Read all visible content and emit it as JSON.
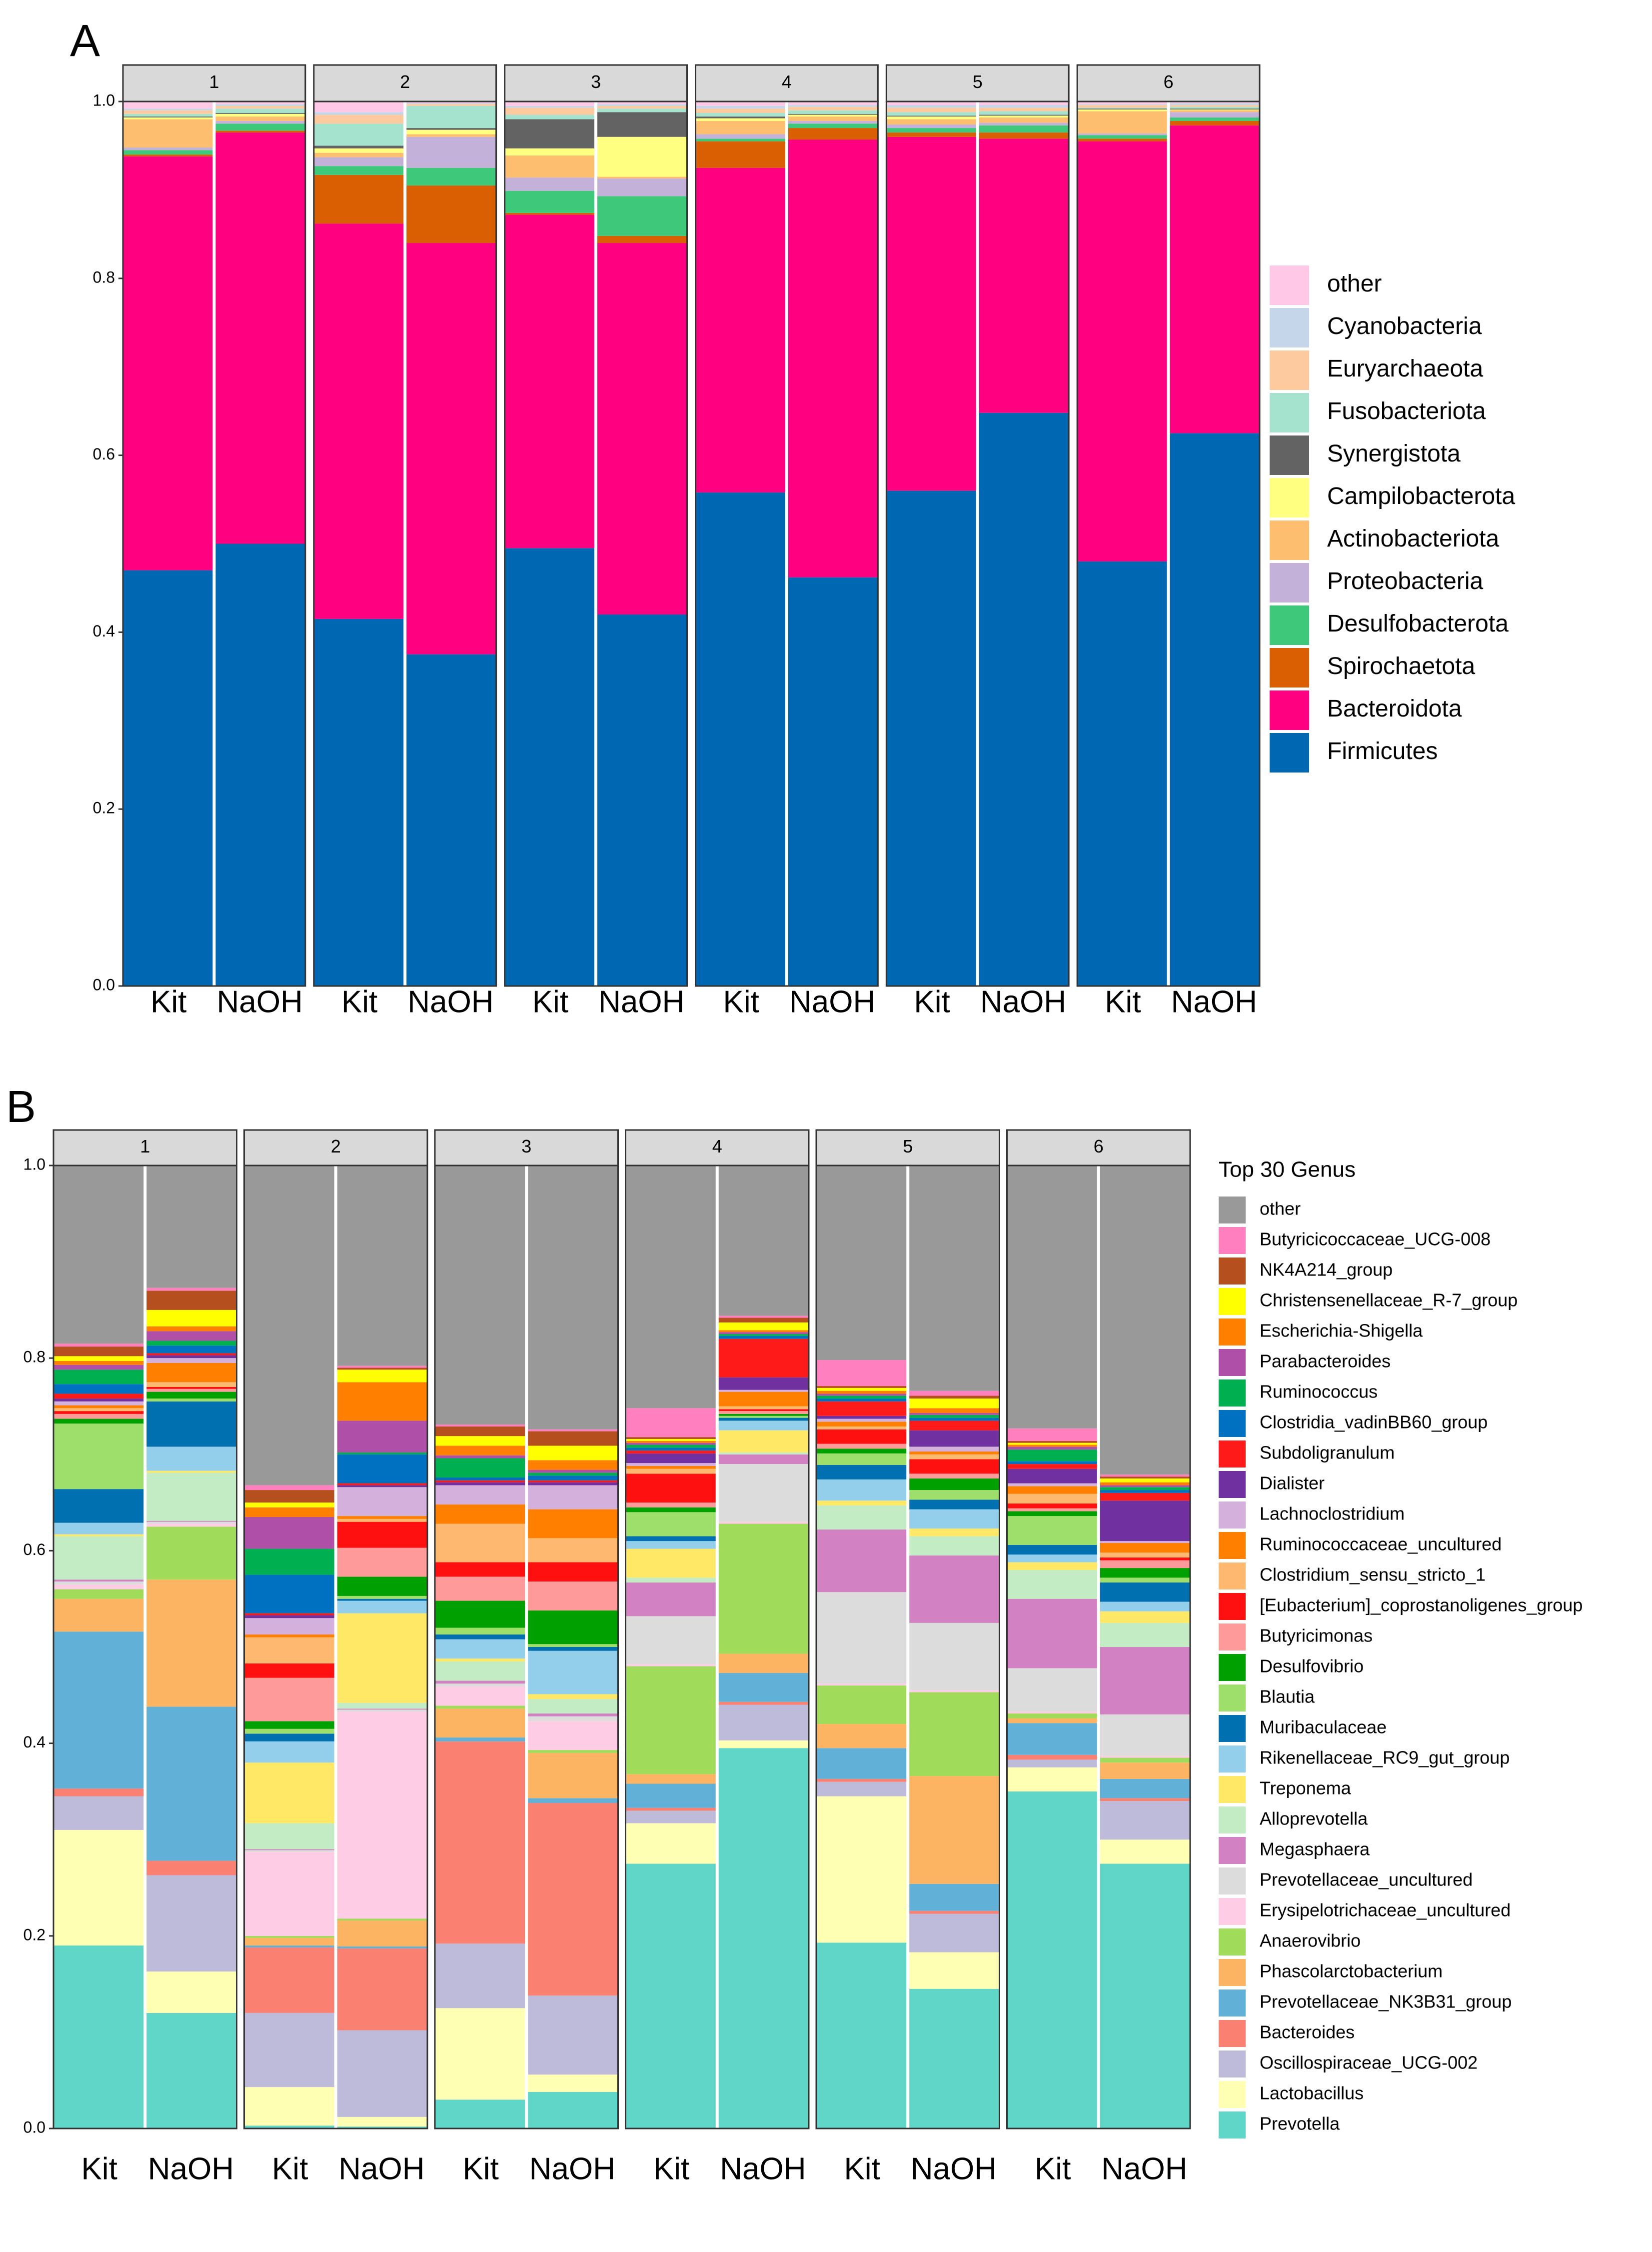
{
  "chart_data": [
    {
      "type": "stacked_bar",
      "panel_label": "A",
      "facets": [
        "1",
        "2",
        "3",
        "4",
        "5",
        "6"
      ],
      "categories": [
        "Kit",
        "NaOH",
        "Kit",
        "NaOH",
        "Kit",
        "NaOH",
        "Kit",
        "NaOH",
        "Kit",
        "NaOH",
        "Kit",
        "NaOH"
      ],
      "ylim": [
        0,
        1
      ],
      "yticks": [
        {
          "value": 0,
          "label": "0.0"
        },
        0.2,
        0.4,
        0.6,
        0.8,
        {
          "value": 1,
          "label": "1.0"
        }
      ],
      "grid": false,
      "legend": "right",
      "series": [
        {
          "name": "other",
          "color": "#ffc8e6",
          "values": [
            0.008,
            0.003,
            0.012,
            0.002,
            0.005,
            0.003,
            0.005,
            0.004,
            0.004,
            0.004,
            0.003,
            0.002
          ]
        },
        {
          "name": "Cyanobacteria",
          "color": "#c6d6ea",
          "values": [
            0.002,
            0.002,
            0.003,
            0.001,
            0.002,
            0.002,
            0.003,
            0.002,
            0.003,
            0.003,
            0.001,
            0.002
          ]
        },
        {
          "name": "Euryarchaeota",
          "color": "#fdcaa0",
          "values": [
            0.004,
            0.003,
            0.01,
            0.002,
            0.008,
            0.003,
            0.005,
            0.004,
            0.005,
            0.004,
            0.003,
            0.002
          ]
        },
        {
          "name": "Fusobacteriota",
          "color": "#a6e3cf",
          "values": [
            0.003,
            0.005,
            0.025,
            0.025,
            0.005,
            0.004,
            0.004,
            0.004,
            0.004,
            0.004,
            0.001,
            0.002
          ]
        },
        {
          "name": "Synergistota",
          "color": "#636363",
          "values": [
            0.001,
            0.001,
            0.003,
            0.002,
            0.033,
            0.028,
            0.002,
            0.001,
            0.001,
            0.001,
            0.001,
            0.001
          ]
        },
        {
          "name": "Campilobacterota",
          "color": "#ffff80",
          "values": [
            0.002,
            0.003,
            0.005,
            0.005,
            0.008,
            0.045,
            0.003,
            0.002,
            0.003,
            0.002,
            0.002,
            0.001
          ]
        },
        {
          "name": "Actinobacteriota",
          "color": "#fdbf6f",
          "values": [
            0.032,
            0.005,
            0.005,
            0.003,
            0.025,
            0.002,
            0.015,
            0.005,
            0.006,
            0.006,
            0.025,
            0.002
          ]
        },
        {
          "name": "Proteobacteria",
          "color": "#c3b1da",
          "values": [
            0.003,
            0.003,
            0.01,
            0.035,
            0.015,
            0.02,
            0.005,
            0.003,
            0.004,
            0.003,
            0.002,
            0.006
          ]
        },
        {
          "name": "Desulfobacterota",
          "color": "#3ec97a",
          "values": [
            0.005,
            0.008,
            0.01,
            0.02,
            0.025,
            0.045,
            0.003,
            0.005,
            0.005,
            0.008,
            0.004,
            0.004
          ]
        },
        {
          "name": "Spirochaetota",
          "color": "#d95f02",
          "values": [
            0.002,
            0.002,
            0.055,
            0.065,
            0.002,
            0.008,
            0.03,
            0.013,
            0.005,
            0.007,
            0.003,
            0.005
          ]
        },
        {
          "name": "Bacteroidota",
          "color": "#ff0080",
          "values": [
            0.468,
            0.465,
            0.447,
            0.465,
            0.377,
            0.42,
            0.367,
            0.495,
            0.4,
            0.31,
            0.475,
            0.348
          ]
        },
        {
          "name": "Firmicutes",
          "color": "#0068b2",
          "values": [
            0.47,
            0.5,
            0.415,
            0.375,
            0.495,
            0.42,
            0.558,
            0.462,
            0.56,
            0.648,
            0.48,
            0.625
          ]
        }
      ]
    },
    {
      "type": "stacked_bar",
      "panel_label": "B",
      "facets": [
        "1",
        "2",
        "3",
        "4",
        "5",
        "6"
      ],
      "categories": [
        "Kit",
        "NaOH",
        "Kit",
        "NaOH",
        "Kit",
        "NaOH",
        "Kit",
        "NaOH",
        "Kit",
        "NaOH",
        "Kit",
        "NaOH"
      ],
      "ylim": [
        0,
        1
      ],
      "yticks": [
        {
          "value": 0,
          "label": "0.0"
        },
        0.2,
        0.4,
        0.6,
        0.8,
        {
          "value": 1,
          "label": "1.0"
        }
      ],
      "grid": false,
      "legend": "right",
      "legend_title": "Top 30 Genus",
      "series": [
        {
          "name": "other",
          "color": "#999999",
          "values": [
            0.185,
            0.127,
            0.332,
            0.208,
            0.269,
            0.274,
            0.252,
            0.156,
            0.202,
            0.234,
            0.273,
            0.321
          ]
        },
        {
          "name": "Butyricicoccaceae_UCG-008",
          "color": "#ff7fbf",
          "values": [
            0.003,
            0.003,
            0.005,
            0.002,
            0.002,
            0.002,
            0.03,
            0.002,
            0.027,
            0.005,
            0.013,
            0.002
          ]
        },
        {
          "name": "NK4A214_group",
          "color": "#b5501e",
          "values": [
            0.01,
            0.02,
            0.013,
            0.002,
            0.01,
            0.015,
            0.002,
            0.005,
            0.002,
            0.003,
            0.002,
            0.002
          ]
        },
        {
          "name": "Christensenellaceae_R-7_group",
          "color": "#ffff00",
          "values": [
            0.005,
            0.017,
            0.005,
            0.013,
            0.01,
            0.015,
            0.002,
            0.008,
            0.003,
            0.01,
            0.002,
            0.004
          ]
        },
        {
          "name": "Escherichia-Shigella",
          "color": "#ff7f00",
          "values": [
            0.004,
            0.005,
            0.01,
            0.04,
            0.01,
            0.01,
            0.002,
            0.002,
            0.003,
            0.005,
            0.002,
            0.003
          ]
        },
        {
          "name": "Parabacteroides",
          "color": "#b04fa8",
          "values": [
            0.005,
            0.01,
            0.033,
            0.033,
            0.003,
            0.003,
            0.002,
            0.002,
            0.002,
            0.002,
            0.003,
            0.002
          ]
        },
        {
          "name": "Ruminococcus",
          "color": "#00b050",
          "values": [
            0.015,
            0.005,
            0.027,
            0.002,
            0.02,
            0.003,
            0.003,
            0.002,
            0.003,
            0.003,
            0.012,
            0.003
          ]
        },
        {
          "name": "Clostridia_vadinBB60_group",
          "color": "#0070c0",
          "values": [
            0.01,
            0.008,
            0.04,
            0.03,
            0.003,
            0.005,
            0.003,
            0.003,
            0.003,
            0.003,
            0.003,
            0.003
          ]
        },
        {
          "name": "Subdoligranulum",
          "color": "#ff1a1a",
          "values": [
            0.005,
            0.002,
            0.002,
            0.002,
            0.002,
            0.002,
            0.003,
            0.04,
            0.015,
            0.01,
            0.005,
            0.008
          ]
        },
        {
          "name": "Dialister",
          "color": "#7030a0",
          "values": [
            0.003,
            0.003,
            0.003,
            0.002,
            0.003,
            0.003,
            0.01,
            0.013,
            0.003,
            0.017,
            0.015,
            0.042
          ]
        },
        {
          "name": "Lachnoclostridium",
          "color": "#d4b0dc",
          "values": [
            0.004,
            0.005,
            0.017,
            0.03,
            0.02,
            0.025,
            0.003,
            0.002,
            0.003,
            0.005,
            0.003,
            0.002
          ]
        },
        {
          "name": "Ruminococcaceae_uncultured",
          "color": "#ff8000",
          "values": [
            0.003,
            0.02,
            0.003,
            0.003,
            0.02,
            0.03,
            0.003,
            0.015,
            0.005,
            0.003,
            0.008,
            0.01
          ]
        },
        {
          "name": "Clostridium_sensu_stricto_1",
          "color": "#ffb870",
          "values": [
            0.003,
            0.005,
            0.027,
            0.003,
            0.04,
            0.025,
            0.005,
            0.003,
            0.003,
            0.005,
            0.01,
            0.005
          ]
        },
        {
          "name": "[Eubacterium]_coprostanoligenes_group",
          "color": "#ff1010",
          "values": [
            0.003,
            0.002,
            0.015,
            0.027,
            0.015,
            0.02,
            0.03,
            0.002,
            0.015,
            0.015,
            0.005,
            0.003
          ]
        },
        {
          "name": "Butyricimonas",
          "color": "#ff9a9a",
          "values": [
            0.005,
            0.003,
            0.045,
            0.03,
            0.025,
            0.03,
            0.005,
            0.003,
            0.005,
            0.005,
            0.003,
            0.008
          ]
        },
        {
          "name": "Desulfovibrio",
          "color": "#00a000",
          "values": [
            0.005,
            0.007,
            0.008,
            0.02,
            0.028,
            0.035,
            0.005,
            0.002,
            0.005,
            0.012,
            0.005,
            0.01
          ]
        },
        {
          "name": "Blautia",
          "color": "#9ede6a",
          "values": [
            0.068,
            0.003,
            0.005,
            0.003,
            0.007,
            0.003,
            0.025,
            0.002,
            0.012,
            0.01,
            0.03,
            0.005
          ]
        },
        {
          "name": "Muribaculaceae",
          "color": "#0070b0",
          "values": [
            0.035,
            0.047,
            0.008,
            0.002,
            0.005,
            0.004,
            0.005,
            0.003,
            0.015,
            0.01,
            0.01,
            0.02
          ]
        },
        {
          "name": "Rikenellaceae_RC9_gut_group",
          "color": "#93cfea",
          "values": [
            0.012,
            0.025,
            0.022,
            0.013,
            0.02,
            0.045,
            0.008,
            0.01,
            0.022,
            0.02,
            0.008,
            0.01
          ]
        },
        {
          "name": "Treponema",
          "color": "#ffe866",
          "values": [
            0.002,
            0.002,
            0.063,
            0.093,
            0.003,
            0.005,
            0.03,
            0.023,
            0.005,
            0.008,
            0.008,
            0.012
          ]
        },
        {
          "name": "Alloprevotella",
          "color": "#c4ecc4",
          "values": [
            0.045,
            0.05,
            0.027,
            0.006,
            0.02,
            0.015,
            0.005,
            0.002,
            0.025,
            0.02,
            0.03,
            0.025
          ]
        },
        {
          "name": "Megasphaera",
          "color": "#d281c3",
          "values": [
            0.002,
            0.001,
            0.001,
            0.001,
            0.003,
            0.003,
            0.035,
            0.01,
            0.065,
            0.07,
            0.072,
            0.07
          ]
        },
        {
          "name": "Prevotellaceae_uncultured",
          "color": "#dcdcdc",
          "values": [
            0.003,
            0.002,
            0.002,
            0.002,
            0.003,
            0.005,
            0.05,
            0.06,
            0.095,
            0.07,
            0.045,
            0.043
          ]
        },
        {
          "name": "Erysipelotrichaceae_uncultured",
          "color": "#ffcce6",
          "values": [
            0.005,
            0.003,
            0.087,
            0.215,
            0.02,
            0.03,
            0.002,
            0.002,
            0.002,
            0.002,
            0.002,
            0.002
          ]
        },
        {
          "name": "Anaerovibrio",
          "color": "#a0dc5a",
          "values": [
            0.01,
            0.055,
            0.002,
            0.002,
            0.003,
            0.003,
            0.112,
            0.135,
            0.04,
            0.087,
            0.005,
            0.005
          ]
        },
        {
          "name": "Phascolarctobacterium",
          "color": "#fdb462",
          "values": [
            0.034,
            0.132,
            0.008,
            0.027,
            0.03,
            0.047,
            0.01,
            0.02,
            0.025,
            0.112,
            0.005,
            0.017
          ]
        },
        {
          "name": "Prevotellaceae_NK3B31_group",
          "color": "#60b0d8",
          "values": [
            0.163,
            0.16,
            0.002,
            0.002,
            0.004,
            0.005,
            0.025,
            0.03,
            0.032,
            0.028,
            0.033,
            0.02
          ]
        },
        {
          "name": "Bacteroides",
          "color": "#fa8072",
          "values": [
            0.008,
            0.015,
            0.068,
            0.085,
            0.21,
            0.2,
            0.003,
            0.003,
            0.003,
            0.003,
            0.005,
            0.003
          ]
        },
        {
          "name": "Oscillospiraceae_UCG-002",
          "color": "#bebada",
          "values": [
            0.035,
            0.1,
            0.077,
            0.09,
            0.067,
            0.082,
            0.013,
            0.037,
            0.015,
            0.04,
            0.008,
            0.04
          ]
        },
        {
          "name": "Lactobacillus",
          "color": "#ffffb3",
          "values": [
            0.12,
            0.043,
            0.04,
            0.01,
            0.095,
            0.018,
            0.042,
            0.008,
            0.152,
            0.038,
            0.025,
            0.025
          ]
        },
        {
          "name": "Prevotella",
          "color": "#5fd6c8",
          "values": [
            0.19,
            0.12,
            0.003,
            0.002,
            0.03,
            0.038,
            0.275,
            0.395,
            0.193,
            0.145,
            0.35,
            0.275
          ]
        }
      ]
    }
  ]
}
